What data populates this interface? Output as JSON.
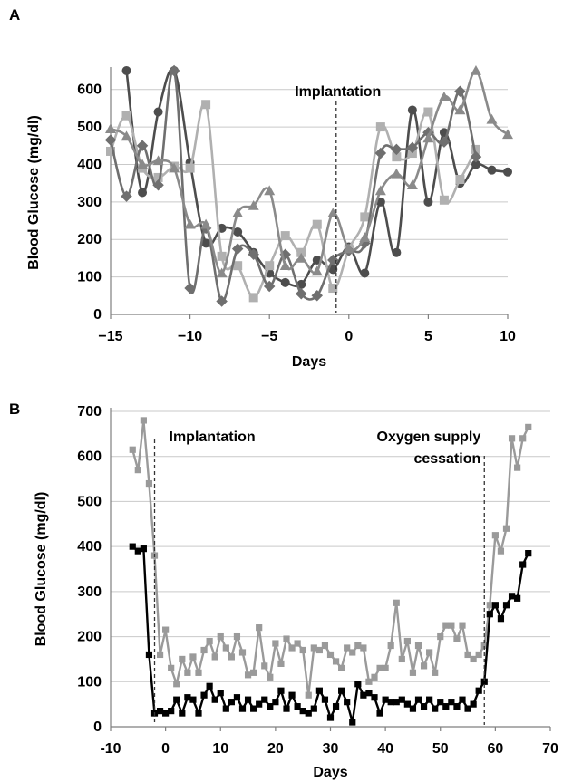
{
  "chart_data": [
    {
      "id": "A",
      "panel_label": "A",
      "type": "line",
      "xlabel": "Days",
      "ylabel": "Blood Glucose (mg/dl)",
      "xlim": [
        -15,
        10
      ],
      "ylim": [
        0,
        650
      ],
      "x_ticks": [
        -15,
        -10,
        -5,
        0,
        5,
        10
      ],
      "x_tick_labels": [
        "−15",
        "−10",
        "−5",
        "0",
        "5",
        "10"
      ],
      "y_ticks": [
        0,
        100,
        200,
        300,
        400,
        500,
        600
      ],
      "grid": "horizontal",
      "annotations": [
        {
          "text": "Implantation",
          "x": -0.8
        }
      ],
      "series": [
        {
          "color": "#4d4d4d",
          "marker": "circle",
          "points": [
            [
              -14,
              650
            ],
            [
              -13,
              325
            ],
            [
              -12,
              540
            ],
            [
              -11,
              650
            ],
            [
              -10,
              405
            ],
            [
              -9,
              190
            ],
            [
              -8,
              230
            ],
            [
              -7,
              220
            ],
            [
              -6,
              165
            ],
            [
              -5,
              110
            ],
            [
              -4,
              85
            ],
            [
              -3,
              80
            ],
            [
              -2,
              145
            ],
            [
              -1,
              120
            ],
            [
              0,
              180
            ],
            [
              1,
              110
            ],
            [
              2,
              300
            ],
            [
              3,
              165
            ],
            [
              4,
              545
            ],
            [
              5,
              300
            ],
            [
              6,
              485
            ],
            [
              7,
              350
            ],
            [
              8,
              400
            ],
            [
              9,
              385
            ],
            [
              10,
              380
            ]
          ]
        },
        {
          "color": "#b0b0b0",
          "marker": "square",
          "points": [
            [
              -15,
              435
            ],
            [
              -14,
              530
            ],
            [
              -13,
              390
            ],
            [
              -12,
              365
            ],
            [
              -11,
              395
            ],
            [
              -10,
              390
            ],
            [
              -9,
              560
            ],
            [
              -8,
              155
            ],
            [
              -7,
              130
            ],
            [
              -6,
              45
            ],
            [
              -5,
              130
            ],
            [
              -4,
              210
            ],
            [
              -3,
              165
            ],
            [
              -2,
              240
            ],
            [
              -1,
              70
            ],
            [
              0,
              175
            ],
            [
              1,
              260
            ],
            [
              2,
              500
            ],
            [
              3,
              420
            ],
            [
              4,
              430
            ],
            [
              5,
              540
            ],
            [
              6,
              305
            ],
            [
              7,
              360
            ],
            [
              8,
              440
            ]
          ]
        },
        {
          "color": "#6f6f6f",
          "marker": "diamond",
          "points": [
            [
              -15,
              465
            ],
            [
              -14,
              315
            ],
            [
              -13,
              450
            ],
            [
              -12,
              345
            ],
            [
              -11,
              650
            ],
            [
              -10,
              70
            ],
            [
              -9,
              230
            ],
            [
              -8,
              35
            ],
            [
              -7,
              175
            ],
            [
              -6,
              160
            ],
            [
              -5,
              75
            ],
            [
              -4,
              160
            ],
            [
              -3,
              55
            ],
            [
              -2,
              50
            ],
            [
              -1,
              145
            ],
            [
              0,
              170
            ],
            [
              1,
              190
            ],
            [
              2,
              430
            ],
            [
              3,
              440
            ],
            [
              4,
              445
            ],
            [
              5,
              485
            ],
            [
              6,
              460
            ],
            [
              7,
              595
            ],
            [
              8,
              420
            ]
          ]
        },
        {
          "color": "#8a8a8a",
          "marker": "triangle",
          "points": [
            [
              -15,
              495
            ],
            [
              -14,
              475
            ],
            [
              -13,
              400
            ],
            [
              -12,
              410
            ],
            [
              -11,
              390
            ],
            [
              -10,
              240
            ],
            [
              -9,
              240
            ],
            [
              -8,
              110
            ],
            [
              -7,
              270
            ],
            [
              -6,
              290
            ],
            [
              -5,
              330
            ],
            [
              -4,
              130
            ],
            [
              -3,
              150
            ],
            [
              -2,
              115
            ],
            [
              -1,
              270
            ],
            [
              0,
              175
            ],
            [
              1,
              205
            ],
            [
              2,
              330
            ],
            [
              3,
              375
            ],
            [
              4,
              345
            ],
            [
              5,
              470
            ],
            [
              6,
              580
            ],
            [
              7,
              545
            ],
            [
              8,
              650
            ],
            [
              9,
              520
            ],
            [
              10,
              480
            ]
          ]
        }
      ]
    },
    {
      "id": "B",
      "panel_label": "B",
      "type": "line",
      "xlabel": "Days",
      "ylabel": "Blood Glucose (mg/dl)",
      "xlim": [
        -10,
        70
      ],
      "ylim": [
        0,
        700
      ],
      "x_ticks": [
        -10,
        0,
        10,
        20,
        30,
        40,
        50,
        60,
        70
      ],
      "x_tick_labels": [
        "-10",
        "0",
        "10",
        "20",
        "30",
        "40",
        "50",
        "60",
        "70"
      ],
      "y_ticks": [
        0,
        100,
        200,
        300,
        400,
        500,
        600,
        700
      ],
      "grid": "horizontal",
      "annotations": [
        {
          "lines": [
            "Implantation"
          ],
          "x": -2
        },
        {
          "lines": [
            "Oxygen supply",
            "cessation"
          ],
          "x": 58
        }
      ],
      "series": [
        {
          "color": "#9a9a9a",
          "marker": "square",
          "points": [
            [
              -6,
              615
            ],
            [
              -5,
              570
            ],
            [
              -4,
              680
            ],
            [
              -3,
              540
            ],
            [
              -2,
              380
            ],
            [
              -1,
              160
            ],
            [
              0,
              215
            ],
            [
              1,
              130
            ],
            [
              2,
              95
            ],
            [
              3,
              150
            ],
            [
              4,
              120
            ],
            [
              5,
              155
            ],
            [
              6,
              120
            ],
            [
              7,
              170
            ],
            [
              8,
              190
            ],
            [
              9,
              155
            ],
            [
              10,
              200
            ],
            [
              11,
              175
            ],
            [
              12,
              155
            ],
            [
              13,
              200
            ],
            [
              14,
              165
            ],
            [
              15,
              115
            ],
            [
              16,
              120
            ],
            [
              17,
              220
            ],
            [
              18,
              135
            ],
            [
              19,
              110
            ],
            [
              20,
              185
            ],
            [
              21,
              140
            ],
            [
              22,
              195
            ],
            [
              23,
              175
            ],
            [
              24,
              185
            ],
            [
              25,
              170
            ],
            [
              26,
              70
            ],
            [
              27,
              175
            ],
            [
              28,
              170
            ],
            [
              29,
              180
            ],
            [
              30,
              160
            ],
            [
              31,
              145
            ],
            [
              32,
              130
            ],
            [
              33,
              175
            ],
            [
              34,
              165
            ],
            [
              35,
              180
            ],
            [
              36,
              175
            ],
            [
              37,
              100
            ],
            [
              38,
              110
            ],
            [
              39,
              130
            ],
            [
              40,
              130
            ],
            [
              41,
              180
            ],
            [
              42,
              275
            ],
            [
              43,
              150
            ],
            [
              44,
              190
            ],
            [
              45,
              120
            ],
            [
              46,
              180
            ],
            [
              47,
              135
            ],
            [
              48,
              165
            ],
            [
              49,
              120
            ],
            [
              50,
              200
            ],
            [
              51,
              225
            ],
            [
              52,
              225
            ],
            [
              53,
              195
            ],
            [
              54,
              225
            ],
            [
              55,
              160
            ],
            [
              56,
              150
            ],
            [
              57,
              160
            ],
            [
              58,
              180
            ],
            [
              59,
              270
            ],
            [
              60,
              425
            ],
            [
              61,
              390
            ],
            [
              62,
              440
            ],
            [
              63,
              640
            ],
            [
              64,
              575
            ],
            [
              65,
              640
            ],
            [
              66,
              665
            ]
          ]
        },
        {
          "color": "#000000",
          "marker": "square",
          "points": [
            [
              -6,
              400
            ],
            [
              -5,
              390
            ],
            [
              -4,
              395
            ],
            [
              -3,
              160
            ],
            [
              -2,
              30
            ],
            [
              -1,
              35
            ],
            [
              0,
              30
            ],
            [
              1,
              35
            ],
            [
              2,
              60
            ],
            [
              3,
              30
            ],
            [
              4,
              65
            ],
            [
              5,
              60
            ],
            [
              6,
              30
            ],
            [
              7,
              70
            ],
            [
              8,
              90
            ],
            [
              9,
              60
            ],
            [
              10,
              75
            ],
            [
              11,
              40
            ],
            [
              12,
              55
            ],
            [
              13,
              65
            ],
            [
              14,
              40
            ],
            [
              15,
              60
            ],
            [
              16,
              40
            ],
            [
              17,
              50
            ],
            [
              18,
              60
            ],
            [
              19,
              45
            ],
            [
              20,
              55
            ],
            [
              21,
              80
            ],
            [
              22,
              40
            ],
            [
              23,
              70
            ],
            [
              24,
              45
            ],
            [
              25,
              35
            ],
            [
              26,
              30
            ],
            [
              27,
              40
            ],
            [
              28,
              80
            ],
            [
              29,
              60
            ],
            [
              30,
              20
            ],
            [
              31,
              45
            ],
            [
              32,
              80
            ],
            [
              33,
              55
            ],
            [
              34,
              10
            ],
            [
              35,
              95
            ],
            [
              36,
              70
            ],
            [
              37,
              75
            ],
            [
              38,
              65
            ],
            [
              39,
              30
            ],
            [
              40,
              60
            ],
            [
              41,
              55
            ],
            [
              42,
              55
            ],
            [
              43,
              60
            ],
            [
              44,
              50
            ],
            [
              45,
              40
            ],
            [
              46,
              60
            ],
            [
              47,
              45
            ],
            [
              48,
              60
            ],
            [
              49,
              40
            ],
            [
              50,
              55
            ],
            [
              51,
              45
            ],
            [
              52,
              55
            ],
            [
              53,
              45
            ],
            [
              54,
              60
            ],
            [
              55,
              40
            ],
            [
              56,
              50
            ],
            [
              57,
              80
            ],
            [
              58,
              100
            ],
            [
              59,
              250
            ],
            [
              60,
              270
            ],
            [
              61,
              240
            ],
            [
              62,
              270
            ],
            [
              63,
              290
            ],
            [
              64,
              285
            ],
            [
              65,
              360
            ],
            [
              66,
              385
            ]
          ]
        }
      ]
    }
  ]
}
